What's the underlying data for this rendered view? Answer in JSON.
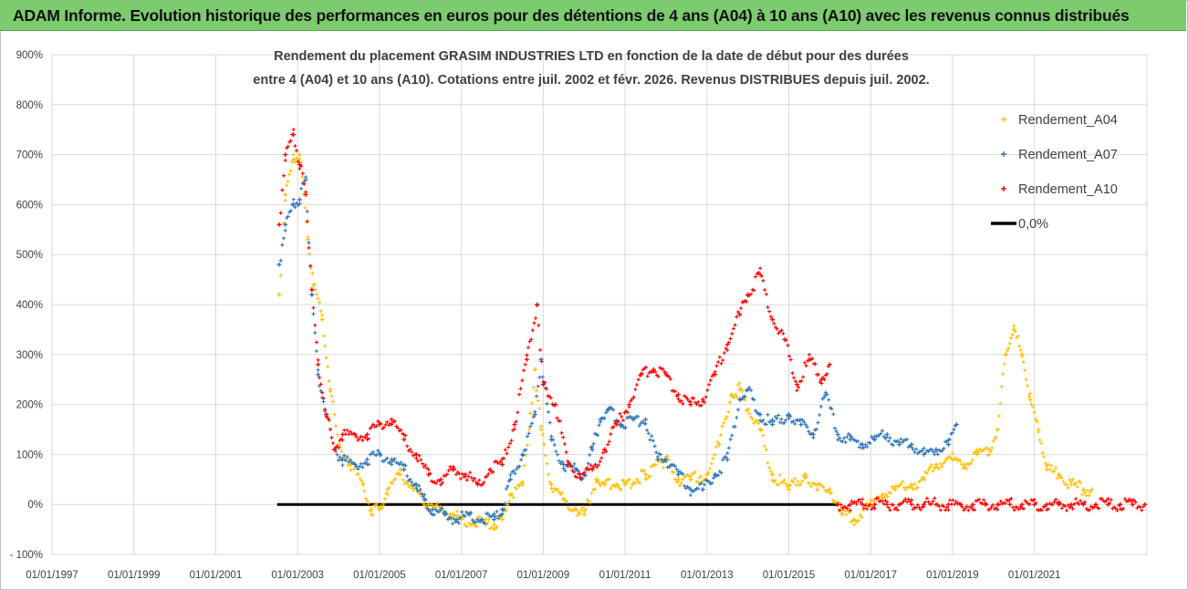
{
  "banner": {
    "title": "ADAM Informe. Evolution historique des performances en euros pour des détentions de 4 ans (A04) à 10 ans (A10) avec les revenus connus distribués"
  },
  "colors": {
    "banner_bg": "#7ccb6f",
    "A04": "#ffc000",
    "A07": "#2e75b6",
    "A10": "#ff0000",
    "zero": "#000000",
    "grid": "#d9d9d9"
  },
  "chart_data": {
    "type": "scatter",
    "title_line1": "Rendement du placement GRASIM INDUSTRIES LTD en fonction de la date de début pour des durées",
    "title_line2": "entre 4 (A04) et 10 ans (A10). Cotations entre juil. 2002 et févr. 2026. Revenus DISTRIBUES depuis juil. 2002.",
    "x_unit": "year",
    "xlim": [
      1997.0,
      2023.75
    ],
    "x_ticks": [
      1997,
      1999,
      2001,
      2003,
      2005,
      2007,
      2009,
      2011,
      2013,
      2015,
      2017,
      2019,
      2021
    ],
    "x_tick_labels": [
      "01/01/1997",
      "01/01/1999",
      "01/01/2001",
      "01/01/2003",
      "01/01/2005",
      "01/01/2007",
      "01/01/2009",
      "01/01/2011",
      "01/01/2013",
      "01/01/2015",
      "01/01/2017",
      "01/01/2019",
      "01/01/2021"
    ],
    "ylim": [
      -100,
      900
    ],
    "y_ticks": [
      -100,
      0,
      100,
      200,
      300,
      400,
      500,
      600,
      700,
      800,
      900
    ],
    "y_tick_labels": [
      "- 100%",
      "0%",
      "100%",
      "200%",
      "300%",
      "400%",
      "500%",
      "600%",
      "700%",
      "800%",
      "900%"
    ],
    "legend_position": "top-right",
    "series": [
      {
        "name": "Rendement_A04",
        "marker": "+",
        "x": [
          2002.55,
          2002.7,
          2002.9,
          2003.05,
          2003.25,
          2003.4,
          2003.6,
          2003.8,
          2004.0,
          2004.3,
          2004.6,
          2004.8,
          2005.0,
          2005.2,
          2005.5,
          2005.8,
          2006.0,
          2006.2,
          2006.5,
          2006.8,
          2007.0,
          2007.3,
          2007.6,
          2007.8,
          2008.0,
          2008.2,
          2008.5,
          2008.8,
          2008.95,
          2009.2,
          2009.5,
          2009.8,
          2010.0,
          2010.3,
          2010.5,
          2010.8,
          2011.0,
          2011.5,
          2012.0,
          2012.3,
          2012.6,
          2013.0,
          2013.3,
          2013.6,
          2013.8,
          2014.0,
          2014.3,
          2014.6,
          2015.0,
          2015.4,
          2015.7,
          2016.0,
          2016.3,
          2016.6,
          2017.0,
          2017.3,
          2017.6,
          2018.0,
          2018.3,
          2018.6,
          2019.0,
          2019.3,
          2019.6,
          2019.9,
          2020.1,
          2020.3,
          2020.5,
          2020.7,
          2020.9,
          2021.1,
          2021.3,
          2021.6,
          2021.9,
          2022.2,
          2022.4
        ],
        "y": [
          420,
          620,
          690,
          700,
          530,
          440,
          370,
          230,
          120,
          80,
          40,
          -10,
          -10,
          30,
          60,
          40,
          20,
          0,
          -10,
          -20,
          -30,
          -35,
          -40,
          -40,
          -30,
          20,
          40,
          270,
          150,
          40,
          10,
          -10,
          -20,
          50,
          40,
          40,
          40,
          60,
          90,
          50,
          50,
          60,
          120,
          220,
          230,
          190,
          150,
          60,
          30,
          60,
          30,
          30,
          -20,
          -30,
          0,
          20,
          30,
          40,
          50,
          80,
          90,
          80,
          100,
          110,
          150,
          300,
          350,
          300,
          210,
          150,
          70,
          60,
          40,
          30,
          30
        ]
      },
      {
        "name": "Rendement_A07",
        "marker": "+",
        "x": [
          2002.55,
          2002.7,
          2002.9,
          2003.05,
          2003.2,
          2003.35,
          2003.5,
          2003.7,
          2003.9,
          2004.1,
          2004.4,
          2004.7,
          2005.0,
          2005.3,
          2005.6,
          2005.9,
          2006.1,
          2006.3,
          2006.6,
          2006.9,
          2007.2,
          2007.5,
          2007.8,
          2008.0,
          2008.2,
          2008.5,
          2008.8,
          2008.95,
          2009.2,
          2009.5,
          2009.8,
          2010.0,
          2010.2,
          2010.4,
          2010.6,
          2010.9,
          2011.2,
          2011.5,
          2011.8,
          2012.0,
          2012.3,
          2012.6,
          2012.9,
          2013.2,
          2013.5,
          2013.8,
          2014.0,
          2014.3,
          2014.6,
          2015.0,
          2015.3,
          2015.6,
          2015.9,
          2016.2,
          2016.5,
          2016.8,
          2017.1,
          2017.4,
          2017.7,
          2018.0,
          2018.3,
          2018.6,
          2018.9,
          2019.1
        ],
        "y": [
          480,
          560,
          600,
          610,
          650,
          420,
          260,
          180,
          110,
          90,
          80,
          90,
          100,
          90,
          70,
          40,
          10,
          -10,
          -20,
          -30,
          -20,
          -30,
          -30,
          -10,
          50,
          100,
          180,
          290,
          130,
          80,
          70,
          60,
          110,
          170,
          190,
          160,
          170,
          170,
          90,
          90,
          60,
          30,
          30,
          60,
          90,
          210,
          230,
          180,
          160,
          180,
          160,
          140,
          220,
          140,
          130,
          120,
          130,
          140,
          120,
          120,
          100,
          110,
          120,
          160
        ]
      },
      {
        "name": "Rendement_A10",
        "marker": "+",
        "x": [
          2002.55,
          2002.7,
          2002.9,
          2003.05,
          2003.2,
          2003.35,
          2003.5,
          2003.7,
          2003.9,
          2004.1,
          2004.4,
          2004.7,
          2005.0,
          2005.3,
          2005.6,
          2005.9,
          2006.2,
          2006.5,
          2006.8,
          2007.1,
          2007.4,
          2007.7,
          2008.0,
          2008.3,
          2008.6,
          2008.85,
          2009.0,
          2009.3,
          2009.6,
          2009.9,
          2010.2,
          2010.5,
          2010.8,
          2011.1,
          2011.4,
          2011.7,
          2012.0,
          2012.3,
          2012.6,
          2012.9,
          2013.2,
          2013.5,
          2013.8,
          2014.0,
          2014.3,
          2014.6,
          2014.9,
          2015.2,
          2015.5,
          2015.8,
          2016.0
        ],
        "y": [
          560,
          700,
          740,
          680,
          620,
          430,
          280,
          180,
          110,
          140,
          140,
          140,
          160,
          170,
          130,
          100,
          60,
          50,
          70,
          60,
          40,
          70,
          80,
          160,
          290,
          400,
          240,
          200,
          80,
          60,
          70,
          110,
          160,
          200,
          260,
          270,
          260,
          220,
          200,
          210,
          260,
          320,
          380,
          420,
          460,
          370,
          330,
          240,
          290,
          250,
          280
        ]
      },
      {
        "name": "Rendement_A10",
        "marker": "+",
        "x": [
          2016.2,
          2016.5,
          2016.8,
          2017.1,
          2017.4,
          2017.7,
          2018.0,
          2018.3,
          2018.6,
          2018.9,
          2019.2,
          2019.5,
          2019.8,
          2020.1,
          2020.4,
          2020.7,
          2021.0,
          2021.3,
          2021.6,
          2021.9,
          2022.2,
          2022.5,
          2022.8,
          2023.1,
          2023.4,
          2023.7
        ],
        "y": [
          0,
          0,
          0,
          0,
          0,
          0,
          0,
          0,
          0,
          0,
          0,
          0,
          0,
          0,
          0,
          0,
          0,
          0,
          0,
          0,
          0,
          0,
          0,
          0,
          0,
          0
        ]
      },
      {
        "name": "0,0%",
        "marker": "line",
        "x": [
          2002.5,
          2016.2
        ],
        "y": [
          0,
          0
        ]
      }
    ],
    "legend": [
      "Rendement_A04",
      "Rendement_A07",
      "Rendement_A10",
      "0,0%"
    ]
  }
}
